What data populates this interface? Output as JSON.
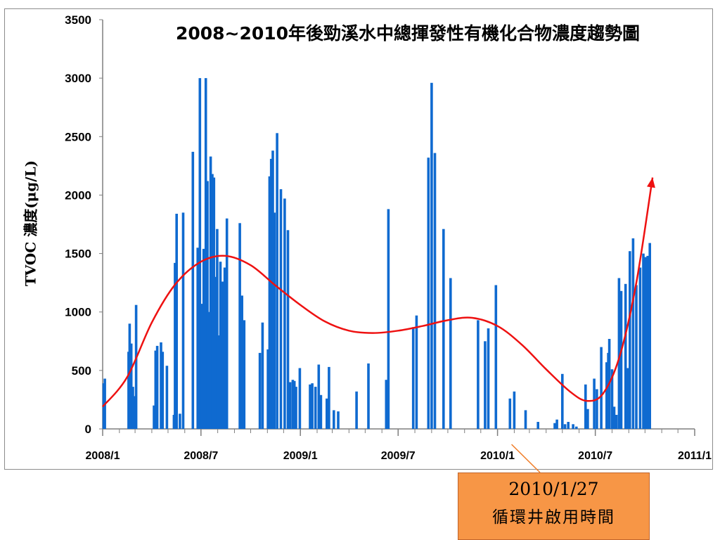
{
  "chart_data": {
    "type": "bar",
    "title": "2008~2010年後勁溪水中總揮發性有機化合物濃度趨勢圖",
    "ylabel": "TVOC 濃度(μg/L)",
    "xlabel": "",
    "ylim": [
      0,
      3500
    ],
    "yticks": [
      0,
      500,
      1000,
      1500,
      2000,
      2500,
      3000,
      3500
    ],
    "xlim": [
      "2008-01-01",
      "2011-01-01"
    ],
    "xticks": [
      {
        "date": "2008-01-01",
        "label": "2008/1"
      },
      {
        "date": "2008-07-01",
        "label": "2008/7"
      },
      {
        "date": "2009-01-01",
        "label": "2009/1"
      },
      {
        "date": "2009-07-01",
        "label": "2009/7"
      },
      {
        "date": "2010-01-01",
        "label": "2010/1"
      },
      {
        "date": "2010-07-01",
        "label": "2010/7"
      },
      {
        "date": "2011-01-01",
        "label": "2011/1"
      }
    ],
    "grid": false,
    "legend": "none",
    "bar_color": "#0f6ad0",
    "trend_color": "#ee1111",
    "series": [
      {
        "type": "bar",
        "points": [
          [
            "2008-01-03",
            390
          ],
          [
            "2008-01-05",
            430
          ],
          [
            "2008-02-18",
            660
          ],
          [
            "2008-02-20",
            900
          ],
          [
            "2008-02-23",
            730
          ],
          [
            "2008-02-26",
            360
          ],
          [
            "2008-02-29",
            280
          ],
          [
            "2008-03-03",
            1060
          ],
          [
            "2008-04-05",
            200
          ],
          [
            "2008-04-08",
            670
          ],
          [
            "2008-04-11",
            710
          ],
          [
            "2008-04-18",
            740
          ],
          [
            "2008-04-21",
            660
          ],
          [
            "2008-04-29",
            540
          ],
          [
            "2008-05-12",
            120
          ],
          [
            "2008-05-14",
            1420
          ],
          [
            "2008-05-17",
            1840
          ],
          [
            "2008-05-23",
            130
          ],
          [
            "2008-05-29",
            1850
          ],
          [
            "2008-06-16",
            2370
          ],
          [
            "2008-06-25",
            1550
          ],
          [
            "2008-06-29",
            3000
          ],
          [
            "2008-07-03",
            1070
          ],
          [
            "2008-07-06",
            1540
          ],
          [
            "2008-07-10",
            3000
          ],
          [
            "2008-07-13",
            2120
          ],
          [
            "2008-07-16",
            1000
          ],
          [
            "2008-07-19",
            2330
          ],
          [
            "2008-07-22",
            2180
          ],
          [
            "2008-07-25",
            2150
          ],
          [
            "2008-07-28",
            1300
          ],
          [
            "2008-07-31",
            1710
          ],
          [
            "2008-08-03",
            800
          ],
          [
            "2008-08-06",
            1430
          ],
          [
            "2008-08-10",
            1260
          ],
          [
            "2008-08-14",
            1380
          ],
          [
            "2008-08-18",
            1800
          ],
          [
            "2008-09-11",
            1760
          ],
          [
            "2008-09-15",
            1140
          ],
          [
            "2008-09-19",
            930
          ],
          [
            "2008-10-18",
            650
          ],
          [
            "2008-10-23",
            910
          ],
          [
            "2008-11-02",
            680
          ],
          [
            "2008-11-05",
            2160
          ],
          [
            "2008-11-08",
            2310
          ],
          [
            "2008-11-11",
            2380
          ],
          [
            "2008-11-14",
            1850
          ],
          [
            "2008-11-19",
            2530
          ],
          [
            "2008-11-26",
            2050
          ],
          [
            "2008-12-03",
            1970
          ],
          [
            "2008-12-09",
            1700
          ],
          [
            "2008-12-13",
            400
          ],
          [
            "2008-12-18",
            420
          ],
          [
            "2008-12-21",
            410
          ],
          [
            "2008-12-24",
            360
          ],
          [
            "2008-12-31",
            520
          ],
          [
            "2009-01-19",
            380
          ],
          [
            "2009-01-23",
            390
          ],
          [
            "2009-01-29",
            360
          ],
          [
            "2009-02-04",
            550
          ],
          [
            "2009-02-08",
            290
          ],
          [
            "2009-02-19",
            260
          ],
          [
            "2009-02-23",
            530
          ],
          [
            "2009-03-04",
            160
          ],
          [
            "2009-03-12",
            150
          ],
          [
            "2009-04-15",
            320
          ],
          [
            "2009-05-07",
            560
          ],
          [
            "2009-06-09",
            420
          ],
          [
            "2009-06-13",
            1880
          ],
          [
            "2009-07-29",
            870
          ],
          [
            "2009-08-04",
            970
          ],
          [
            "2009-08-26",
            2320
          ],
          [
            "2009-09-01",
            2960
          ],
          [
            "2009-09-07",
            2360
          ],
          [
            "2009-09-23",
            1710
          ],
          [
            "2009-10-06",
            1290
          ],
          [
            "2009-11-26",
            930
          ],
          [
            "2009-12-09",
            750
          ],
          [
            "2009-12-15",
            860
          ],
          [
            "2009-12-29",
            1230
          ],
          [
            "2010-01-24",
            260
          ],
          [
            "2010-02-01",
            320
          ],
          [
            "2010-02-22",
            160
          ],
          [
            "2010-03-17",
            60
          ],
          [
            "2010-04-17",
            50
          ],
          [
            "2010-04-21",
            80
          ],
          [
            "2010-05-01",
            470
          ],
          [
            "2010-05-06",
            40
          ],
          [
            "2010-05-12",
            60
          ],
          [
            "2010-05-21",
            40
          ],
          [
            "2010-05-27",
            20
          ],
          [
            "2010-06-13",
            380
          ],
          [
            "2010-06-17",
            170
          ],
          [
            "2010-06-23",
            0
          ],
          [
            "2010-06-29",
            430
          ],
          [
            "2010-07-04",
            340
          ],
          [
            "2010-07-12",
            700
          ],
          [
            "2010-07-22",
            570
          ],
          [
            "2010-07-25",
            650
          ],
          [
            "2010-07-27",
            770
          ],
          [
            "2010-08-01",
            510
          ],
          [
            "2010-08-05",
            190
          ],
          [
            "2010-08-09",
            120
          ],
          [
            "2010-08-14",
            1290
          ],
          [
            "2010-08-18",
            1180
          ],
          [
            "2010-08-26",
            1240
          ],
          [
            "2010-08-30",
            520
          ],
          [
            "2010-09-03",
            1520
          ],
          [
            "2010-09-09",
            1630
          ],
          [
            "2010-09-15",
            1230
          ],
          [
            "2010-09-22",
            1380
          ],
          [
            "2010-09-28",
            1500
          ],
          [
            "2010-10-02",
            1470
          ],
          [
            "2010-10-06",
            1480
          ],
          [
            "2010-10-10",
            1590
          ]
        ]
      },
      {
        "type": "line",
        "points": [
          [
            "2008-01-01",
            190
          ],
          [
            "2008-02-15",
            440
          ],
          [
            "2008-04-01",
            910
          ],
          [
            "2008-05-15",
            1240
          ],
          [
            "2008-07-01",
            1430
          ],
          [
            "2008-08-15",
            1480
          ],
          [
            "2008-10-01",
            1400
          ],
          [
            "2008-11-15",
            1230
          ],
          [
            "2009-01-01",
            1060
          ],
          [
            "2009-02-15",
            920
          ],
          [
            "2009-04-01",
            840
          ],
          [
            "2009-05-15",
            820
          ],
          [
            "2009-07-01",
            840
          ],
          [
            "2009-08-15",
            880
          ],
          [
            "2009-10-01",
            930
          ],
          [
            "2009-11-15",
            950
          ],
          [
            "2010-01-01",
            880
          ],
          [
            "2010-02-15",
            720
          ],
          [
            "2010-04-01",
            510
          ],
          [
            "2010-05-15",
            320
          ],
          [
            "2010-06-15",
            240
          ],
          [
            "2010-07-15",
            300
          ],
          [
            "2010-08-15",
            620
          ],
          [
            "2010-09-15",
            1250
          ],
          [
            "2010-10-15",
            2150
          ]
        ]
      }
    ],
    "annotations": [
      {
        "text": "2010/1/27\n循環井啟用時間",
        "date": "2010-01-27"
      }
    ]
  },
  "callout": {
    "line1": "2010/1/27",
    "line2": "循環井啟用時間",
    "fill": "#f79646",
    "leader_color": "#f07e2a"
  }
}
